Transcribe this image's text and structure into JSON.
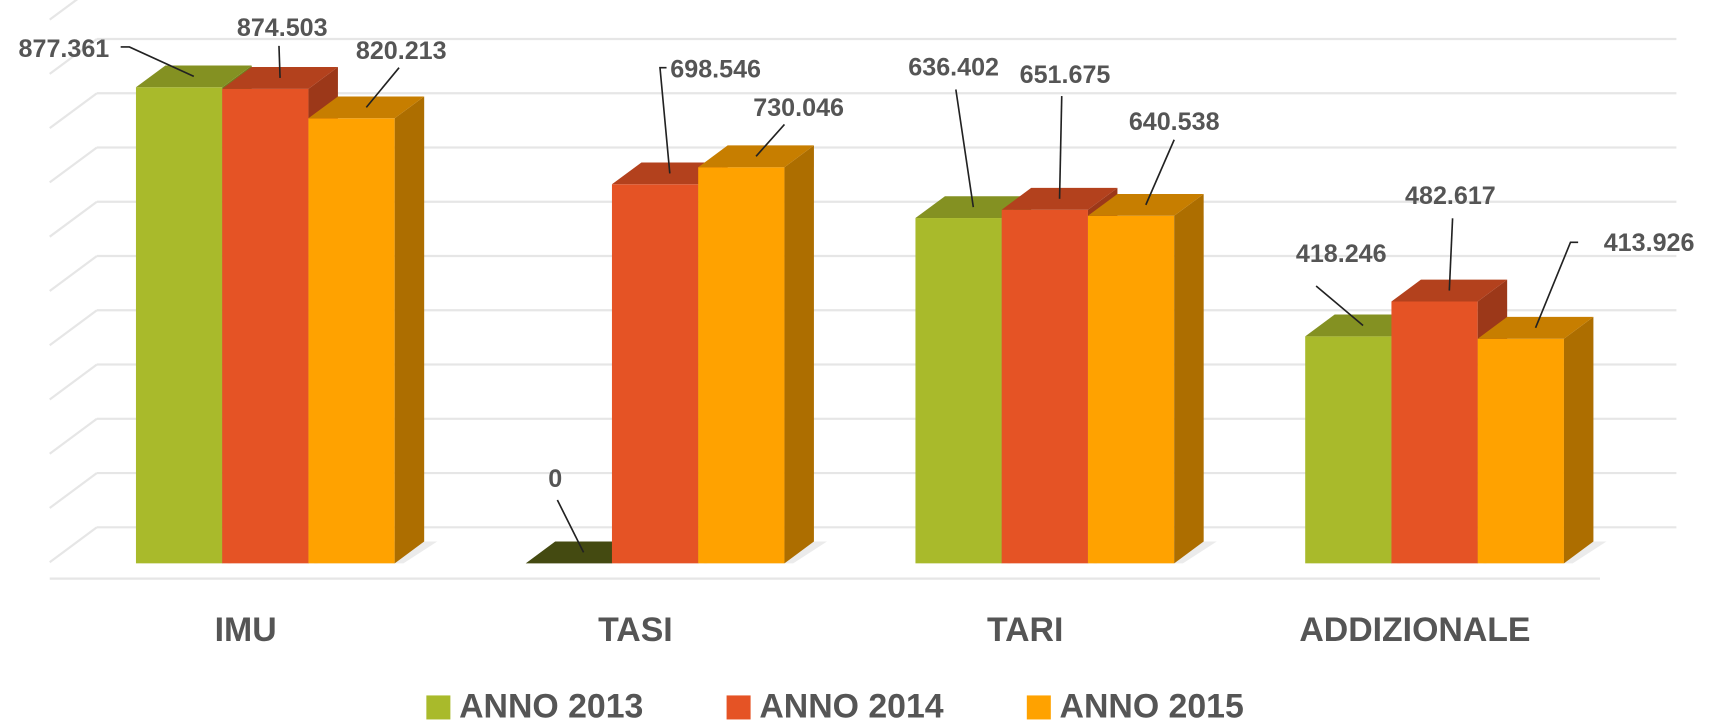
{
  "chart_data": {
    "type": "bar3d",
    "categories": [
      "IMU",
      "TASI",
      "TARI",
      "ADDIZIONALE"
    ],
    "series": [
      {
        "name": "ANNO 2013",
        "color": "#a9ba2b",
        "values": [
          877361,
          0,
          636402,
          418246
        ],
        "value_labels": [
          "877.361",
          "0",
          "636.402",
          "418.246"
        ]
      },
      {
        "name": "ANNO 2014",
        "color": "#e55325",
        "values": [
          874503,
          698546,
          651675,
          482617
        ],
        "value_labels": [
          "874.503",
          "698.546",
          "651.675",
          "482.617"
        ]
      },
      {
        "name": "ANNO 2015",
        "color": "#ffa200",
        "values": [
          820213,
          730046,
          640538,
          413926
        ],
        "value_labels": [
          "820.213",
          "730.046",
          "640.538",
          "413.926"
        ]
      }
    ],
    "ylim": [
      0,
      1000000
    ],
    "yticks": [
      0,
      100000,
      200000,
      300000,
      400000,
      500000,
      600000,
      700000,
      800000,
      900000,
      1000000
    ],
    "grid": true,
    "legend": "bottom"
  }
}
